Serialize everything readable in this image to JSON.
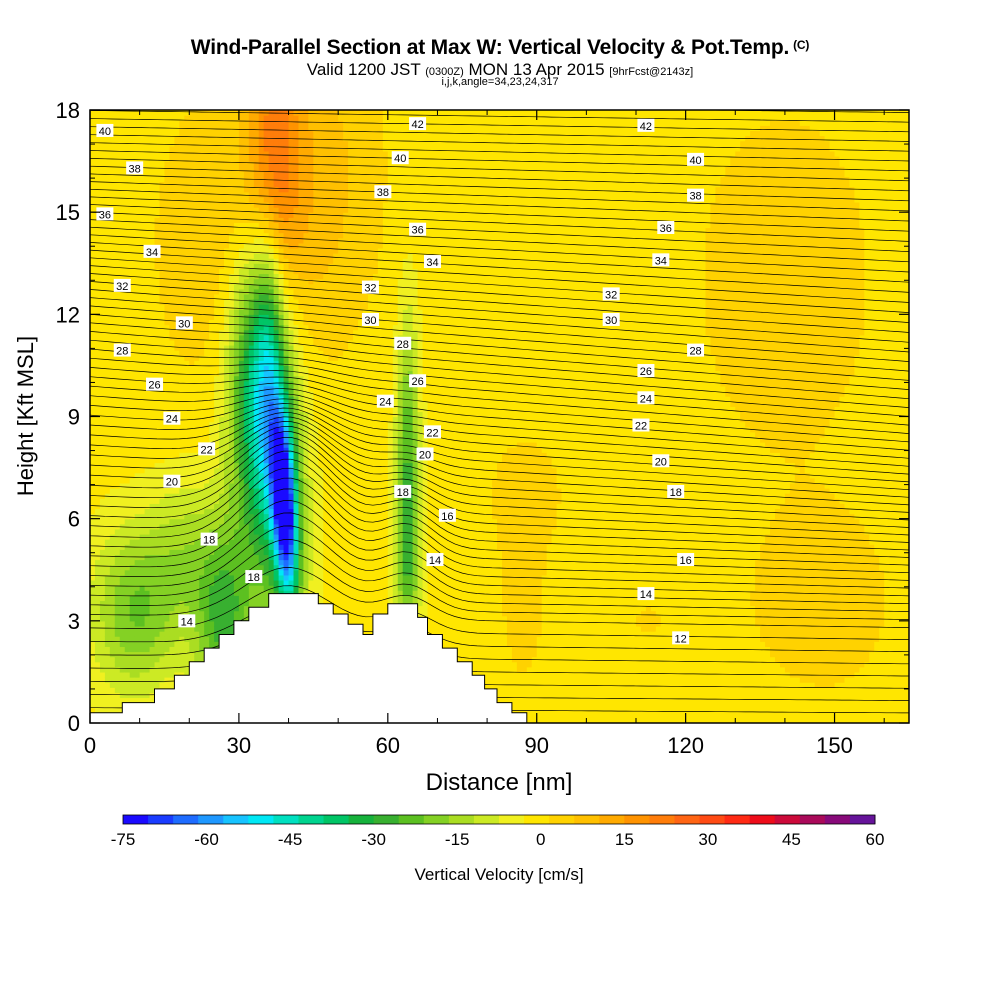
{
  "header": {
    "title": "Wind-Parallel Section at Max W: Vertical Velocity & Pot.Temp.",
    "title_mark": "(C)",
    "valid_prefix": "Valid 1200 JST",
    "valid_utc": "(0300Z)",
    "valid_date": "MON 13 Apr 2015",
    "forecast": "[9hrFcst@2143z]",
    "grid_info": "i,j,k,angle=34,23,24,317"
  },
  "chart_data": {
    "type": "heatmap",
    "xlabel": "Distance [nm]",
    "ylabel": "Height [Kft MSL]",
    "xlim": [
      0,
      165
    ],
    "ylim": [
      0,
      18
    ],
    "x_ticks": [
      "0",
      "30",
      "60",
      "90",
      "120",
      "150"
    ],
    "y_ticks": [
      "0",
      "3",
      "6",
      "9",
      "12",
      "15",
      "18"
    ],
    "colorbar": {
      "label": "Vertical Velocity [cm/s]",
      "ticks": [
        "-75",
        "-60",
        "-45",
        "-30",
        "-15",
        "0",
        "15",
        "30",
        "45",
        "60"
      ],
      "min": -75,
      "max": 60,
      "step": 5,
      "colors": [
        "#1a0aff",
        "#1a3cff",
        "#1e6cff",
        "#1e98ff",
        "#17c3ff",
        "#00e8f5",
        "#00e0c0",
        "#00d48f",
        "#00c566",
        "#16b23c",
        "#38b030",
        "#5cc021",
        "#84d124",
        "#aadd22",
        "#ccea24",
        "#f0f020",
        "#ffe600",
        "#ffd200",
        "#ffc000",
        "#ffaa00",
        "#ff9300",
        "#ff7d0a",
        "#ff6514",
        "#ff4b14",
        "#ff2a14",
        "#ee0c1a",
        "#cc0a3a",
        "#aa0a5a",
        "#880a7a",
        "#66149a"
      ]
    },
    "theta_contours": {
      "levels": [
        "12",
        "14",
        "16",
        "18",
        "20",
        "22",
        "24",
        "26",
        "28",
        "30",
        "32",
        "34",
        "36",
        "38",
        "40",
        "42"
      ],
      "labels": [
        {
          "text": "40",
          "x": 3,
          "y": 17.4
        },
        {
          "text": "38",
          "x": 9,
          "y": 16.3
        },
        {
          "text": "36",
          "x": 3,
          "y": 14.95
        },
        {
          "text": "34",
          "x": 12.5,
          "y": 13.85
        },
        {
          "text": "32",
          "x": 6.5,
          "y": 12.85
        },
        {
          "text": "30",
          "x": 19,
          "y": 11.75
        },
        {
          "text": "28",
          "x": 6.5,
          "y": 10.95
        },
        {
          "text": "26",
          "x": 13,
          "y": 9.95
        },
        {
          "text": "24",
          "x": 16.5,
          "y": 8.95
        },
        {
          "text": "22",
          "x": 23.5,
          "y": 8.05
        },
        {
          "text": "20",
          "x": 16.5,
          "y": 7.1
        },
        {
          "text": "18",
          "x": 24,
          "y": 5.4
        },
        {
          "text": "18",
          "x": 33,
          "y": 4.3
        },
        {
          "text": "14",
          "x": 19.5,
          "y": 3.0
        },
        {
          "text": "42",
          "x": 66,
          "y": 17.6
        },
        {
          "text": "40",
          "x": 62.5,
          "y": 16.6
        },
        {
          "text": "38",
          "x": 59,
          "y": 15.6
        },
        {
          "text": "36",
          "x": 66,
          "y": 14.5
        },
        {
          "text": "34",
          "x": 69,
          "y": 13.55
        },
        {
          "text": "32",
          "x": 56.5,
          "y": 12.8
        },
        {
          "text": "30",
          "x": 56.5,
          "y": 11.85
        },
        {
          "text": "28",
          "x": 63,
          "y": 11.15
        },
        {
          "text": "26",
          "x": 66,
          "y": 10.05
        },
        {
          "text": "24",
          "x": 59.5,
          "y": 9.45
        },
        {
          "text": "22",
          "x": 69,
          "y": 8.55
        },
        {
          "text": "20",
          "x": 67.5,
          "y": 7.9
        },
        {
          "text": "18",
          "x": 63,
          "y": 6.8
        },
        {
          "text": "16",
          "x": 72,
          "y": 6.1
        },
        {
          "text": "14",
          "x": 69.5,
          "y": 4.8
        },
        {
          "text": "42",
          "x": 112,
          "y": 17.55
        },
        {
          "text": "40",
          "x": 122,
          "y": 16.55
        },
        {
          "text": "38",
          "x": 122,
          "y": 15.5
        },
        {
          "text": "36",
          "x": 116,
          "y": 14.55
        },
        {
          "text": "34",
          "x": 115,
          "y": 13.6
        },
        {
          "text": "32",
          "x": 105,
          "y": 12.6
        },
        {
          "text": "30",
          "x": 105,
          "y": 11.85
        },
        {
          "text": "28",
          "x": 122,
          "y": 10.95
        },
        {
          "text": "26",
          "x": 112,
          "y": 10.35
        },
        {
          "text": "24",
          "x": 112,
          "y": 9.55
        },
        {
          "text": "22",
          "x": 111,
          "y": 8.75
        },
        {
          "text": "20",
          "x": 115,
          "y": 7.7
        },
        {
          "text": "18",
          "x": 118,
          "y": 6.8
        },
        {
          "text": "16",
          "x": 120,
          "y": 4.8
        },
        {
          "text": "14",
          "x": 112,
          "y": 3.8
        },
        {
          "text": "12",
          "x": 119,
          "y": 2.5
        }
      ]
    },
    "terrain_kft": [
      [
        0,
        0.3
      ],
      [
        3.5,
        0.3
      ],
      [
        6.5,
        0.6
      ],
      [
        13,
        1.0
      ],
      [
        17,
        1.4
      ],
      [
        20,
        1.8
      ],
      [
        23,
        2.2
      ],
      [
        26,
        2.6
      ],
      [
        29,
        3.0
      ],
      [
        32,
        3.4
      ],
      [
        36,
        3.8
      ],
      [
        46,
        3.5
      ],
      [
        49,
        3.2
      ],
      [
        52,
        2.9
      ],
      [
        55,
        2.6
      ],
      [
        57,
        3.2
      ],
      [
        60,
        3.5
      ],
      [
        66,
        3.1
      ],
      [
        68,
        2.6
      ],
      [
        71,
        2.2
      ],
      [
        74,
        1.8
      ],
      [
        77,
        1.4
      ],
      [
        79.5,
        1.0
      ],
      [
        82,
        0.6
      ],
      [
        85,
        0.3
      ],
      [
        88,
        0
      ],
      [
        165,
        0
      ]
    ],
    "updraft_cores": [
      {
        "x": 40,
        "y": 17,
        "w": 25
      },
      {
        "x": 87,
        "y": 6.5,
        "w": 20
      },
      {
        "x": 88,
        "y": 3.5,
        "w": 18
      }
    ]
  }
}
